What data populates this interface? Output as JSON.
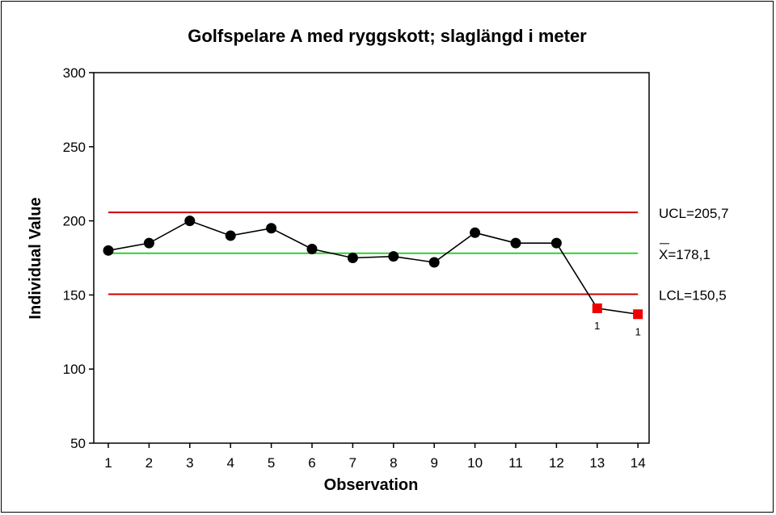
{
  "chart_data": {
    "type": "line",
    "title": "Golfspelare A med ryggskott; slaglängd i meter",
    "xlabel": "Observation",
    "ylabel": "Individual Value",
    "x": [
      1,
      2,
      3,
      4,
      5,
      6,
      7,
      8,
      9,
      10,
      11,
      12,
      13,
      14
    ],
    "values": [
      180,
      185,
      200,
      190,
      195,
      181,
      175,
      176,
      172,
      192,
      185,
      185,
      141,
      137
    ],
    "out_of_control": [
      false,
      false,
      false,
      false,
      false,
      false,
      false,
      false,
      false,
      false,
      false,
      false,
      true,
      true
    ],
    "flag_label": "1",
    "ylim": [
      50,
      300
    ],
    "yticks": [
      50,
      100,
      150,
      200,
      250,
      300
    ],
    "xticks": [
      "1",
      "2",
      "3",
      "4",
      "5",
      "6",
      "7",
      "8",
      "9",
      "10",
      "11",
      "12",
      "13",
      "14"
    ],
    "limits": {
      "ucl": {
        "value": 205.7,
        "label": "UCL=205,7",
        "color": "#cc0000"
      },
      "center": {
        "value": 178.1,
        "label": "X=178,1",
        "color": "#33cc33"
      },
      "lcl": {
        "value": 150.5,
        "label": "LCL=150,5",
        "color": "#cc0000"
      }
    },
    "colors": {
      "series": "#000000",
      "out_point": "#ee0000"
    },
    "grid": false,
    "legend": "none"
  }
}
